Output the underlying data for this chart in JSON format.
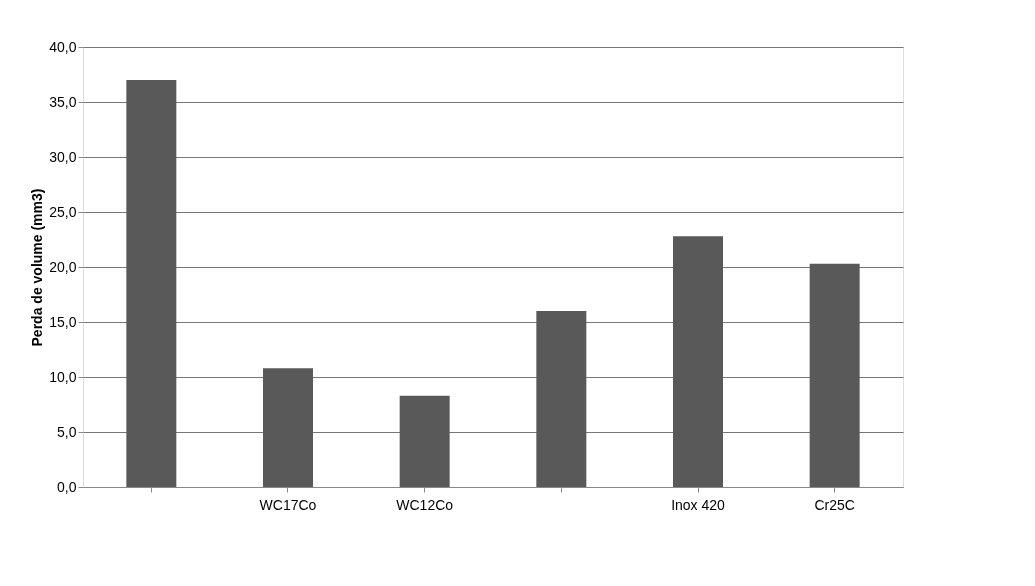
{
  "chart_data": {
    "type": "bar",
    "ylabel": "Perda de volume (mm3)",
    "categories": [
      null,
      "WC17Co",
      "WC12Co",
      null,
      "Inox 420",
      "Cr25C"
    ],
    "values": [
      37.0,
      10.8,
      8.3,
      16.0,
      22.8,
      20.3
    ],
    "color": "#595959",
    "ylim": [
      0,
      40
    ],
    "yticks": [
      {
        "value": 0,
        "label": "0,0"
      },
      {
        "value": 5,
        "label": "5,0"
      },
      {
        "value": 10,
        "label": "10,0"
      },
      {
        "value": 15,
        "label": "15,0"
      },
      {
        "value": 20,
        "label": "20,0"
      },
      {
        "value": 25,
        "label": "25,0"
      },
      {
        "value": 30,
        "label": "30,0"
      },
      {
        "value": 35,
        "label": "35,0"
      },
      {
        "value": 40,
        "label": "40,0"
      }
    ],
    "grid": "y"
  }
}
